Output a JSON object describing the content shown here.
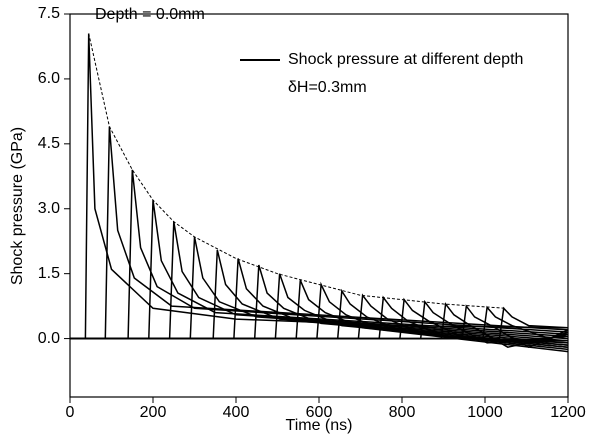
{
  "chart_data": {
    "type": "line",
    "x_label": "Time (ns)",
    "y_label": "Shock pressure (GPa)",
    "annotations": [
      "Depth = 0.0mm",
      "δH=0.3mm"
    ],
    "legend": "upper right",
    "xlim": [
      0,
      1200
    ],
    "xticks": [
      0,
      200,
      400,
      600,
      800,
      1000,
      1200
    ],
    "ylim": [
      -1.35,
      7.5
    ],
    "yticks": [
      {
        "value": 0,
        "label": "0.0"
      },
      1.5,
      {
        "value": 3,
        "label": "3.0"
      },
      4.5,
      {
        "value": 6,
        "label": "6.0"
      },
      7.5
    ],
    "series": [
      {
        "name": "Shock pressure at different depth",
        "color": "#000000",
        "curves": [
          {
            "x": [
              0,
              37,
              45,
              60,
              100,
              200,
              400,
              800,
              1200
            ],
            "values": [
              0,
              0,
              7.05,
              3.0,
              1.6,
              0.7,
              0.45,
              0.3,
              0.25
            ]
          },
          {
            "x": [
              0,
              85,
              95,
              115,
              155,
              245,
              1200
            ],
            "values": [
              0,
              0,
              4.9,
              2.5,
              1.4,
              0.75,
              0.2
            ]
          },
          {
            "x": [
              0,
              140,
              150,
              170,
              210,
              300,
              1200
            ],
            "values": [
              0,
              0,
              3.9,
              2.1,
              1.2,
              0.7,
              0.15
            ]
          },
          {
            "x": [
              0,
              190,
              200,
              220,
              260,
              350,
              1200
            ],
            "values": [
              0,
              0,
              3.2,
              1.8,
              1.05,
              0.6,
              0.1
            ]
          },
          {
            "x": [
              0,
              240,
              250,
              270,
              310,
              400,
              1200
            ],
            "values": [
              0,
              0,
              2.7,
              1.55,
              0.95,
              0.55,
              0.05
            ]
          },
          {
            "x": [
              0,
              290,
              300,
              320,
              360,
              450,
              1200
            ],
            "values": [
              0,
              0,
              2.35,
              1.4,
              0.85,
              0.5,
              0
            ]
          },
          {
            "x": [
              0,
              345,
              355,
              375,
              415,
              505,
              1200
            ],
            "values": [
              0,
              0,
              2.05,
              1.25,
              0.8,
              0.45,
              -0.05
            ]
          },
          {
            "x": [
              0,
              395,
              405,
              425,
              465,
              555,
              1200
            ],
            "values": [
              0,
              0,
              1.85,
              1.15,
              0.75,
              0.4,
              -0.1
            ]
          },
          {
            "x": [
              0,
              445,
              455,
              475,
              515,
              605,
              1200
            ],
            "values": [
              0,
              0,
              1.7,
              1.05,
              0.7,
              0.35,
              -0.15
            ]
          },
          {
            "x": [
              0,
              495,
              505,
              525,
              565,
              655,
              1200
            ],
            "values": [
              0,
              0,
              1.5,
              0.95,
              0.65,
              0.3,
              -0.2
            ]
          },
          {
            "x": [
              0,
              545,
              555,
              575,
              615,
              705,
              1200
            ],
            "values": [
              0,
              0,
              1.35,
              0.9,
              0.6,
              0.25,
              -0.3
            ]
          },
          {
            "x": [
              0,
              595,
              605,
              625,
              665,
              755,
              1200
            ],
            "values": [
              0,
              0,
              1.25,
              0.85,
              0.55,
              0.2,
              -0.25
            ]
          },
          {
            "x": [
              0,
              645,
              655,
              675,
              715,
              805,
              1200
            ],
            "values": [
              0,
              0,
              1.1,
              0.8,
              0.5,
              0.15,
              -0.2
            ]
          },
          {
            "x": [
              0,
              695,
              705,
              725,
              765,
              855,
              1200
            ],
            "values": [
              0,
              0,
              1.0,
              0.75,
              0.45,
              0.1,
              -0.15
            ]
          },
          {
            "x": [
              0,
              745,
              755,
              775,
              815,
              905,
              1200
            ],
            "values": [
              0,
              0,
              0.95,
              0.7,
              0.4,
              0.05,
              -0.1
            ]
          },
          {
            "x": [
              0,
              795,
              805,
              825,
              865,
              955,
              1200
            ],
            "values": [
              0,
              0,
              0.9,
              0.65,
              0.4,
              0,
              -0.05
            ]
          },
          {
            "x": [
              0,
              845,
              855,
              875,
              915,
              1005,
              1200
            ],
            "values": [
              0,
              0,
              0.85,
              0.6,
              0.35,
              -0.1,
              0.05
            ]
          },
          {
            "x": [
              0,
              895,
              905,
              925,
              965,
              1055,
              1200
            ],
            "values": [
              0,
              0,
              0.8,
              0.55,
              0.3,
              -0.2,
              0.1
            ]
          },
          {
            "x": [
              0,
              945,
              955,
              975,
              1015,
              1105,
              1200
            ],
            "values": [
              0,
              0,
              0.75,
              0.5,
              0.3,
              -0.2,
              0.15
            ]
          },
          {
            "x": [
              0,
              995,
              1005,
              1025,
              1065,
              1155,
              1200
            ],
            "values": [
              0,
              0,
              0.72,
              0.5,
              0.3,
              0,
              0.2
            ]
          },
          {
            "x": [
              0,
              1035,
              1045,
              1065,
              1105,
              1200
            ],
            "values": [
              0,
              0,
              0.7,
              0.5,
              0.3,
              0.25
            ]
          }
        ]
      }
    ],
    "envelope": {
      "x": [
        45,
        95,
        150,
        200,
        250,
        300,
        400,
        500,
        600,
        700,
        800,
        900,
        1050
      ],
      "values": [
        7.05,
        4.9,
        3.9,
        3.2,
        2.7,
        2.35,
        1.85,
        1.5,
        1.25,
        1.0,
        0.9,
        0.8,
        0.7
      ],
      "color": "#000000"
    }
  }
}
